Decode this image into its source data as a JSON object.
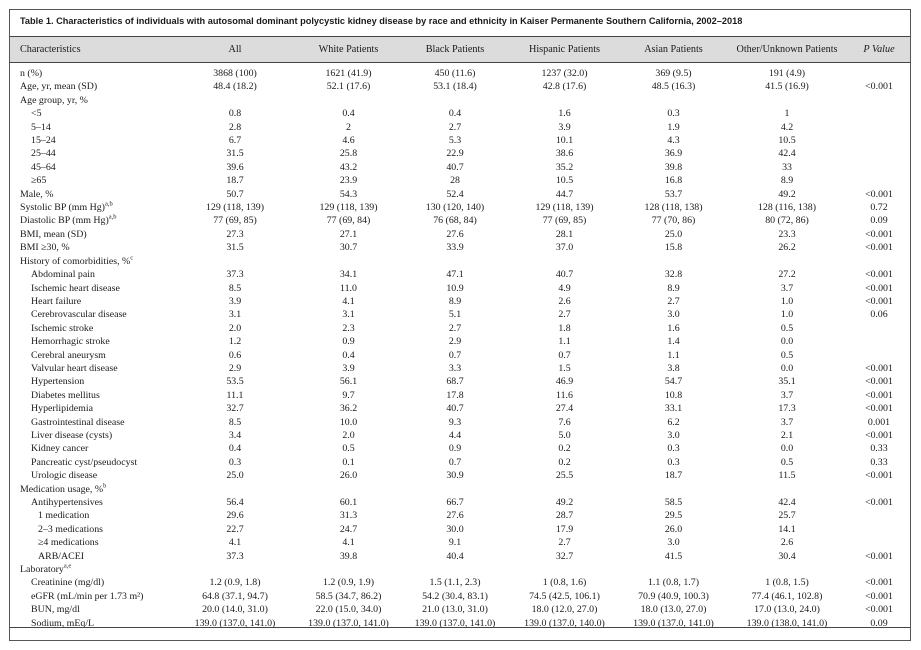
{
  "caption": "Table 1.   Characteristics of individuals with autosomal dominant polycystic kidney disease by race and ethnicity in Kaiser Permanente Southern California, 2002–2018",
  "columns": [
    "Characteristics",
    "All",
    "White Patients",
    "Black Patients",
    "Hispanic Patients",
    "Asian Patients",
    "Other/Unknown Patients",
    "P Value"
  ],
  "rows": [
    {
      "label": "n (%)",
      "level": 0,
      "cells": [
        "3868 (100)",
        "1621 (41.9)",
        "450 (11.6)",
        "1237 (32.0)",
        "369 (9.5)",
        "191 (4.9)",
        ""
      ]
    },
    {
      "label": "Age, yr, mean (SD)",
      "level": 0,
      "cells": [
        "48.4 (18.2)",
        "52.1 (17.6)",
        "53.1 (18.4)",
        "42.8 (17.6)",
        "48.5 (16.3)",
        "41.5 (16.9)",
        "<0.001"
      ]
    },
    {
      "label": "Age group, yr, %",
      "level": 0,
      "cells": [
        "",
        "",
        "",
        "",
        "",
        "",
        ""
      ]
    },
    {
      "label": "<5",
      "level": 1,
      "cells": [
        "0.8",
        "0.4",
        "0.4",
        "1.6",
        "0.3",
        "1",
        ""
      ]
    },
    {
      "label": "5–14",
      "level": 1,
      "cells": [
        "2.8",
        "2",
        "2.7",
        "3.9",
        "1.9",
        "4.2",
        ""
      ]
    },
    {
      "label": "15–24",
      "level": 1,
      "cells": [
        "6.7",
        "4.6",
        "5.3",
        "10.1",
        "4.3",
        "10.5",
        ""
      ]
    },
    {
      "label": "25–44",
      "level": 1,
      "cells": [
        "31.5",
        "25.8",
        "22.9",
        "38.6",
        "36.9",
        "42.4",
        ""
      ]
    },
    {
      "label": "45–64",
      "level": 1,
      "cells": [
        "39.6",
        "43.2",
        "40.7",
        "35.2",
        "39.8",
        "33",
        ""
      ]
    },
    {
      "label": "≥65",
      "level": 1,
      "cells": [
        "18.7",
        "23.9",
        "28",
        "10.5",
        "16.8",
        "8.9",
        ""
      ]
    },
    {
      "label": "Male, %",
      "level": 0,
      "cells": [
        "50.7",
        "54.3",
        "52.4",
        "44.7",
        "53.7",
        "49.2",
        "<0.001"
      ]
    },
    {
      "label": "Systolic BP (mm Hg)",
      "sup": "a,b",
      "level": 0,
      "cells": [
        "129 (118, 139)",
        "129 (118, 139)",
        "130 (120, 140)",
        "129 (118, 139)",
        "128 (118, 138)",
        "128 (116, 138)",
        "0.72"
      ]
    },
    {
      "label": "Diastolic BP (mm Hg)",
      "sup": "a,b",
      "level": 0,
      "cells": [
        "77 (69, 85)",
        "77 (69, 84)",
        "76 (68, 84)",
        "77 (69, 85)",
        "77 (70, 86)",
        "80 (72, 86)",
        "0.09"
      ]
    },
    {
      "label": "BMI, mean (SD)",
      "level": 0,
      "cells": [
        "27.3",
        "27.1",
        "27.6",
        "28.1",
        "25.0",
        "23.3",
        "<0.001"
      ]
    },
    {
      "label": "BMI ≥30, %",
      "level": 0,
      "cells": [
        "31.5",
        "30.7",
        "33.9",
        "37.0",
        "15.8",
        "26.2",
        "<0.001"
      ]
    },
    {
      "label": "History of comorbidities, %",
      "sup": "c",
      "level": 0,
      "cells": [
        "",
        "",
        "",
        "",
        "",
        "",
        ""
      ]
    },
    {
      "label": "Abdominal pain",
      "level": 1,
      "cells": [
        "37.3",
        "34.1",
        "47.1",
        "40.7",
        "32.8",
        "27.2",
        "<0.001"
      ]
    },
    {
      "label": "Ischemic heart disease",
      "level": 1,
      "cells": [
        "8.5",
        "11.0",
        "10.9",
        "4.9",
        "8.9",
        "3.7",
        "<0.001"
      ]
    },
    {
      "label": "Heart failure",
      "level": 1,
      "cells": [
        "3.9",
        "4.1",
        "8.9",
        "2.6",
        "2.7",
        "1.0",
        "<0.001"
      ]
    },
    {
      "label": "Cerebrovascular disease",
      "level": 1,
      "cells": [
        "3.1",
        "3.1",
        "5.1",
        "2.7",
        "3.0",
        "1.0",
        "0.06"
      ]
    },
    {
      "label": "Ischemic stroke",
      "level": 1,
      "cells": [
        "2.0",
        "2.3",
        "2.7",
        "1.8",
        "1.6",
        "0.5",
        ""
      ]
    },
    {
      "label": "Hemorrhagic stroke",
      "level": 1,
      "cells": [
        "1.2",
        "0.9",
        "2.9",
        "1.1",
        "1.4",
        "0.0",
        ""
      ]
    },
    {
      "label": "Cerebral aneurysm",
      "level": 1,
      "cells": [
        "0.6",
        "0.4",
        "0.7",
        "0.7",
        "1.1",
        "0.5",
        ""
      ]
    },
    {
      "label": "Valvular heart disease",
      "level": 1,
      "cells": [
        "2.9",
        "3.9",
        "3.3",
        "1.5",
        "3.8",
        "0.0",
        "<0.001"
      ]
    },
    {
      "label": "Hypertension",
      "level": 1,
      "cells": [
        "53.5",
        "56.1",
        "68.7",
        "46.9",
        "54.7",
        "35.1",
        "<0.001"
      ]
    },
    {
      "label": "Diabetes mellitus",
      "level": 1,
      "cells": [
        "11.1",
        "9.7",
        "17.8",
        "11.6",
        "10.8",
        "3.7",
        "<0.001"
      ]
    },
    {
      "label": "Hyperlipidemia",
      "level": 1,
      "cells": [
        "32.7",
        "36.2",
        "40.7",
        "27.4",
        "33.1",
        "17.3",
        "<0.001"
      ]
    },
    {
      "label": "Gastrointestinal disease",
      "level": 1,
      "cells": [
        "8.5",
        "10.0",
        "9.3",
        "7.6",
        "6.2",
        "3.7",
        "0.001"
      ]
    },
    {
      "label": "Liver disease (cysts)",
      "level": 1,
      "cells": [
        "3.4",
        "2.0",
        "4.4",
        "5.0",
        "3.0",
        "2.1",
        "<0.001"
      ]
    },
    {
      "label": "Kidney cancer",
      "level": 1,
      "cells": [
        "0.4",
        "0.5",
        "0.9",
        "0.2",
        "0.3",
        "0.0",
        "0.33"
      ]
    },
    {
      "label": "Pancreatic cyst/pseudocyst",
      "level": 1,
      "cells": [
        "0.3",
        "0.1",
        "0.7",
        "0.2",
        "0.3",
        "0.5",
        "0.33"
      ]
    },
    {
      "label": "Urologic disease",
      "level": 1,
      "cells": [
        "25.0",
        "26.0",
        "30.9",
        "25.5",
        "18.7",
        "11.5",
        "<0.001"
      ]
    },
    {
      "label": "Medication usage, %",
      "sup": "b",
      "level": 0,
      "cells": [
        "",
        "",
        "",
        "",
        "",
        "",
        ""
      ]
    },
    {
      "label": "Antihypertensives",
      "level": 1,
      "cells": [
        "56.4",
        "60.1",
        "66.7",
        "49.2",
        "58.5",
        "42.4",
        "<0.001"
      ]
    },
    {
      "label": "1 medication",
      "level": 2,
      "cells": [
        "29.6",
        "31.3",
        "27.6",
        "28.7",
        "29.5",
        "25.7",
        ""
      ]
    },
    {
      "label": "2–3 medications",
      "level": 2,
      "cells": [
        "22.7",
        "24.7",
        "30.0",
        "17.9",
        "26.0",
        "14.1",
        ""
      ]
    },
    {
      "label": "≥4 medications",
      "level": 2,
      "cells": [
        "4.1",
        "4.1",
        "9.1",
        "2.7",
        "3.0",
        "2.6",
        ""
      ]
    },
    {
      "label": "ARB/ACEI",
      "level": 2,
      "cells": [
        "37.3",
        "39.8",
        "40.4",
        "32.7",
        "41.5",
        "30.4",
        "<0.001"
      ]
    },
    {
      "label": "Laboratory",
      "sup": "a,e",
      "level": 0,
      "cells": [
        "",
        "",
        "",
        "",
        "",
        "",
        ""
      ]
    },
    {
      "label": "Creatinine (mg/dl)",
      "level": 1,
      "cells": [
        "1.2 (0.9, 1.8)",
        "1.2 (0.9, 1.9)",
        "1.5 (1.1, 2.3)",
        "1 (0.8, 1.6)",
        "1.1 (0.8, 1.7)",
        "1 (0.8, 1.5)",
        "<0.001"
      ]
    },
    {
      "label": "eGFR (mL/min per 1.73 m²)",
      "level": 1,
      "cells": [
        "64.8 (37.1, 94.7)",
        "58.5 (34.7, 86.2)",
        "54.2 (30.4, 83.1)",
        "74.5 (42.5, 106.1)",
        "70.9 (40.9, 100.3)",
        "77.4 (46.1, 102.8)",
        "<0.001"
      ]
    },
    {
      "label": "BUN, mg/dl",
      "level": 1,
      "cells": [
        "20.0 (14.0, 31.0)",
        "22.0 (15.0, 34.0)",
        "21.0 (13.0, 31.0)",
        "18.0 (12.0, 27.0)",
        "18.0 (13.0, 27.0)",
        "17.0 (13.0, 24.0)",
        "<0.001"
      ]
    },
    {
      "label": "Sodium, mEq/L",
      "level": 1,
      "cells": [
        "139.0 (137.0, 141.0)",
        "139.0 (137.0, 141.0)",
        "139.0 (137.0, 141.0)",
        "139.0 (137.0, 140.0)",
        "139.0 (137.0, 141.0)",
        "139.0 (138.0, 141.0)",
        "0.09"
      ]
    }
  ]
}
